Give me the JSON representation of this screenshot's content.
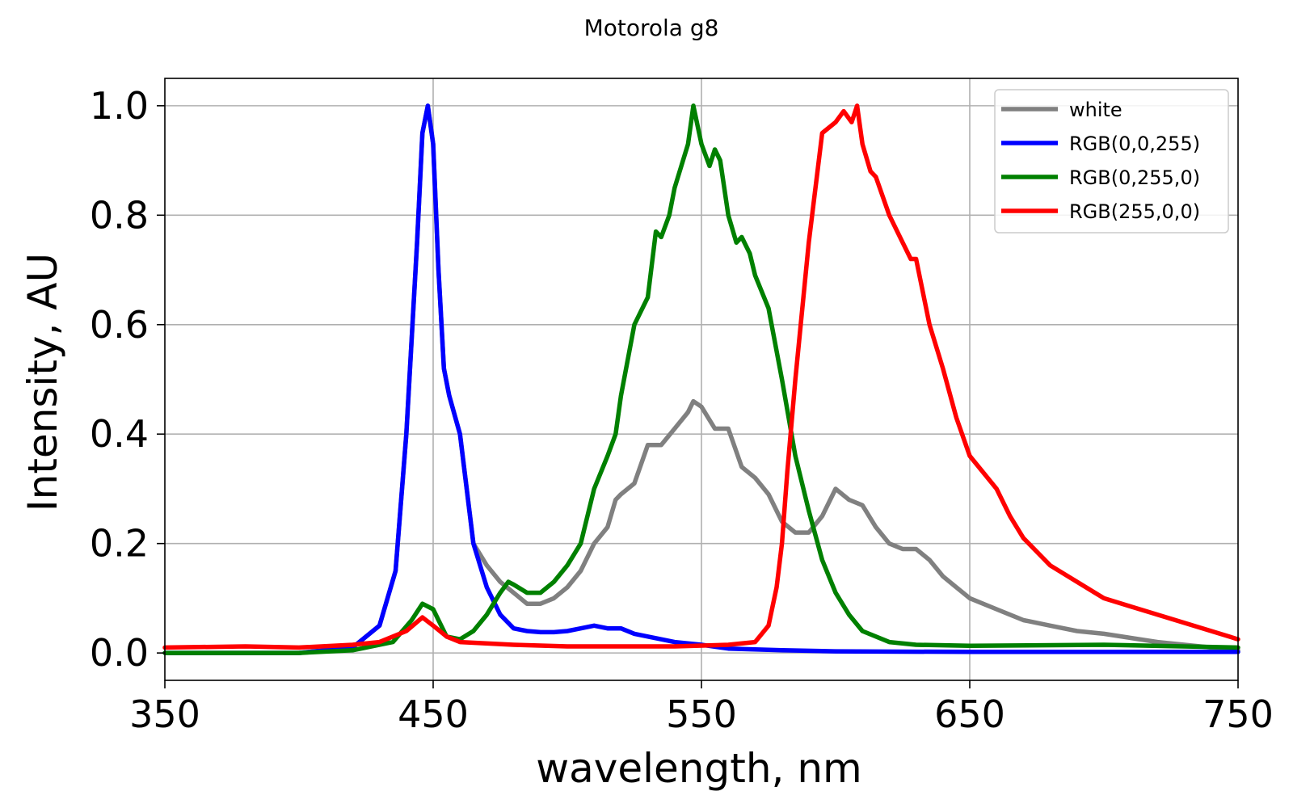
{
  "chart_data": {
    "type": "line",
    "title": "Motorola g8",
    "xlabel": "wavelength, nm",
    "ylabel": "Intensity, AU",
    "xlim": [
      350,
      750
    ],
    "ylim": [
      -0.05,
      1.05
    ],
    "xticks": [
      350,
      450,
      550,
      650,
      750
    ],
    "xtick_labels": [
      "350",
      "450",
      "550",
      "650",
      "750"
    ],
    "yticks": [
      0.0,
      0.2,
      0.4,
      0.6,
      0.8,
      1.0
    ],
    "ytick_labels": [
      "0.0",
      "0.2",
      "0.4",
      "0.6",
      "0.8",
      "1.0"
    ],
    "grid": true,
    "legend_position": "top-right",
    "series": [
      {
        "name": "white",
        "color": "#808080",
        "x": [
          350,
          400,
          420,
          430,
          436,
          440,
          444,
          446,
          448,
          450,
          452,
          454,
          456,
          460,
          465,
          470,
          475,
          480,
          485,
          490,
          495,
          500,
          505,
          510,
          515,
          518,
          520,
          525,
          530,
          535,
          540,
          545,
          547,
          550,
          555,
          560,
          565,
          570,
          575,
          580,
          585,
          590,
          595,
          600,
          605,
          610,
          615,
          620,
          625,
          630,
          635,
          640,
          645,
          650,
          660,
          670,
          680,
          690,
          700,
          720,
          740,
          750
        ],
        "y": [
          0.0,
          0.0,
          0.01,
          0.05,
          0.15,
          0.4,
          0.75,
          0.95,
          1.0,
          0.93,
          0.7,
          0.52,
          0.47,
          0.4,
          0.2,
          0.16,
          0.13,
          0.11,
          0.09,
          0.09,
          0.1,
          0.12,
          0.15,
          0.2,
          0.23,
          0.28,
          0.29,
          0.31,
          0.38,
          0.38,
          0.41,
          0.44,
          0.46,
          0.45,
          0.41,
          0.41,
          0.34,
          0.32,
          0.29,
          0.24,
          0.22,
          0.22,
          0.25,
          0.3,
          0.28,
          0.27,
          0.23,
          0.2,
          0.19,
          0.19,
          0.17,
          0.14,
          0.12,
          0.1,
          0.08,
          0.06,
          0.05,
          0.04,
          0.035,
          0.02,
          0.01,
          0.005
        ]
      },
      {
        "name": "RGB(0,0,255)",
        "color": "#0000ff",
        "x": [
          350,
          400,
          420,
          430,
          436,
          440,
          444,
          446,
          448,
          450,
          452,
          454,
          456,
          460,
          465,
          470,
          475,
          480,
          485,
          490,
          495,
          500,
          505,
          510,
          515,
          520,
          525,
          530,
          540,
          550,
          560,
          580,
          600,
          650,
          700,
          750
        ],
        "y": [
          0.0,
          0.0,
          0.01,
          0.05,
          0.15,
          0.4,
          0.75,
          0.95,
          1.0,
          0.93,
          0.7,
          0.52,
          0.47,
          0.4,
          0.2,
          0.12,
          0.07,
          0.045,
          0.04,
          0.038,
          0.038,
          0.04,
          0.045,
          0.05,
          0.045,
          0.045,
          0.035,
          0.03,
          0.02,
          0.015,
          0.008,
          0.005,
          0.003,
          0.002,
          0.002,
          0.002
        ]
      },
      {
        "name": "RGB(0,255,0)",
        "color": "#008000",
        "x": [
          350,
          400,
          420,
          435,
          442,
          446,
          450,
          455,
          460,
          465,
          470,
          475,
          478,
          480,
          485,
          490,
          495,
          500,
          505,
          510,
          515,
          518,
          520,
          525,
          530,
          533,
          535,
          538,
          540,
          545,
          547,
          550,
          553,
          555,
          557,
          560,
          563,
          565,
          568,
          570,
          575,
          580,
          585,
          590,
          595,
          600,
          605,
          610,
          620,
          630,
          650,
          700,
          750
        ],
        "y": [
          0.0,
          0.0,
          0.005,
          0.02,
          0.06,
          0.09,
          0.08,
          0.03,
          0.025,
          0.04,
          0.07,
          0.11,
          0.13,
          0.125,
          0.11,
          0.11,
          0.13,
          0.16,
          0.2,
          0.3,
          0.36,
          0.4,
          0.47,
          0.6,
          0.65,
          0.77,
          0.76,
          0.8,
          0.85,
          0.93,
          1.0,
          0.93,
          0.89,
          0.92,
          0.9,
          0.8,
          0.75,
          0.76,
          0.73,
          0.69,
          0.63,
          0.5,
          0.36,
          0.26,
          0.17,
          0.11,
          0.07,
          0.04,
          0.02,
          0.015,
          0.013,
          0.015,
          0.01
        ]
      },
      {
        "name": "RGB(255,0,0)",
        "color": "#ff0000",
        "x": [
          350,
          380,
          400,
          420,
          430,
          440,
          446,
          450,
          455,
          460,
          480,
          500,
          540,
          560,
          570,
          575,
          578,
          580,
          582,
          585,
          590,
          595,
          600,
          603,
          606,
          608,
          610,
          613,
          615,
          620,
          625,
          628,
          630,
          635,
          640,
          645,
          650,
          655,
          660,
          665,
          670,
          680,
          690,
          700,
          710,
          720,
          730,
          740,
          750
        ],
        "y": [
          0.01,
          0.012,
          0.01,
          0.015,
          0.02,
          0.04,
          0.065,
          0.05,
          0.03,
          0.02,
          0.015,
          0.012,
          0.012,
          0.015,
          0.02,
          0.05,
          0.12,
          0.2,
          0.33,
          0.5,
          0.75,
          0.95,
          0.97,
          0.99,
          0.97,
          1.0,
          0.93,
          0.88,
          0.87,
          0.8,
          0.75,
          0.72,
          0.72,
          0.6,
          0.52,
          0.43,
          0.36,
          0.33,
          0.3,
          0.25,
          0.21,
          0.16,
          0.13,
          0.1,
          0.085,
          0.07,
          0.055,
          0.04,
          0.025
        ]
      }
    ]
  }
}
